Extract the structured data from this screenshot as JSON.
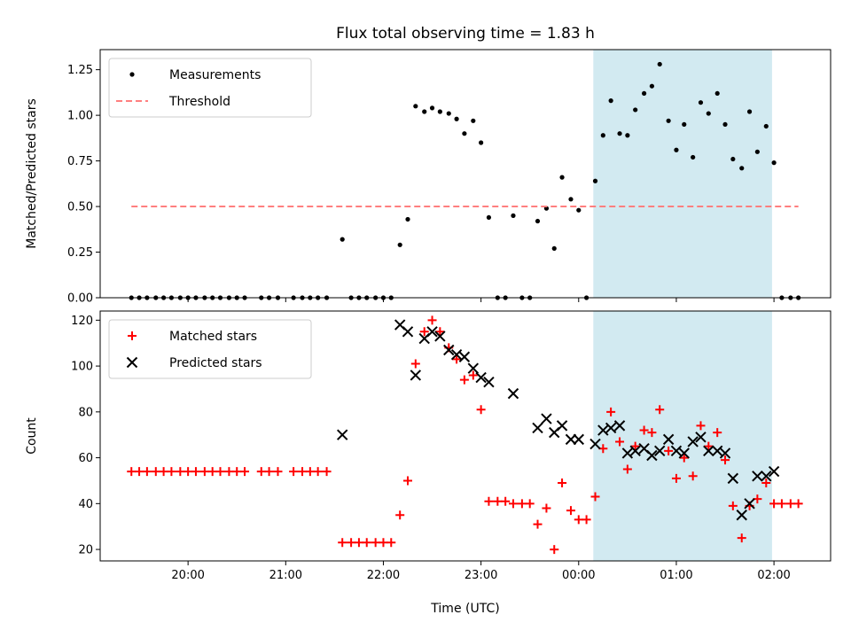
{
  "chart_data": {
    "title": "Flux total observing time = 1.83 h",
    "xlabel": "Time (UTC)",
    "x_unit": "hours UTC (values past 24 are after midnight)",
    "xlim": [
      19.1,
      26.58
    ],
    "x_ticks": [
      {
        "value": 20,
        "label": "20:00"
      },
      {
        "value": 21,
        "label": "21:00"
      },
      {
        "value": 22,
        "label": "22:00"
      },
      {
        "value": 23,
        "label": "23:00"
      },
      {
        "value": 24,
        "label": "00:00"
      },
      {
        "value": 25,
        "label": "01:00"
      },
      {
        "value": 26,
        "label": "02:00"
      }
    ],
    "highlight_span": {
      "x0": 24.15,
      "x1": 25.98,
      "color": "#add8e6"
    },
    "panels": [
      {
        "type": "scatter",
        "ylabel": "Matched/Predicted stars",
        "ylim": [
          0,
          1.36
        ],
        "y_ticks": [
          {
            "value": 0,
            "label": "0.00"
          },
          {
            "value": 0.25,
            "label": "0.25"
          },
          {
            "value": 0.5,
            "label": "0.50"
          },
          {
            "value": 0.75,
            "label": "0.75"
          },
          {
            "value": 1.0,
            "label": "1.00"
          },
          {
            "value": 1.25,
            "label": "1.25"
          }
        ],
        "legend_position": "upper-left",
        "series": [
          {
            "name": "Measurements",
            "marker": "dot",
            "color": "#000000",
            "points": [
              [
                19.42,
                0
              ],
              [
                19.5,
                0
              ],
              [
                19.58,
                0
              ],
              [
                19.67,
                0
              ],
              [
                19.75,
                0
              ],
              [
                19.83,
                0
              ],
              [
                19.92,
                0
              ],
              [
                20.0,
                0
              ],
              [
                20.08,
                0
              ],
              [
                20.17,
                0
              ],
              [
                20.25,
                0
              ],
              [
                20.33,
                0
              ],
              [
                20.42,
                0
              ],
              [
                20.5,
                0
              ],
              [
                20.58,
                0
              ],
              [
                20.75,
                0
              ],
              [
                20.83,
                0
              ],
              [
                20.92,
                0
              ],
              [
                21.08,
                0
              ],
              [
                21.17,
                0
              ],
              [
                21.25,
                0
              ],
              [
                21.33,
                0
              ],
              [
                21.42,
                0
              ],
              [
                21.58,
                0.32
              ],
              [
                21.67,
                0
              ],
              [
                21.75,
                0
              ],
              [
                21.83,
                0
              ],
              [
                21.92,
                0
              ],
              [
                22.0,
                0
              ],
              [
                22.08,
                0
              ],
              [
                22.17,
                0.29
              ],
              [
                22.25,
                0.43
              ],
              [
                22.33,
                1.05
              ],
              [
                22.42,
                1.02
              ],
              [
                22.5,
                1.04
              ],
              [
                22.58,
                1.02
              ],
              [
                22.67,
                1.01
              ],
              [
                22.75,
                0.98
              ],
              [
                22.83,
                0.9
              ],
              [
                22.92,
                0.97
              ],
              [
                23.0,
                0.85
              ],
              [
                23.08,
                0.44
              ],
              [
                23.17,
                0
              ],
              [
                23.25,
                0
              ],
              [
                23.33,
                0.45
              ],
              [
                23.42,
                0
              ],
              [
                23.5,
                0
              ],
              [
                23.58,
                0.42
              ],
              [
                23.67,
                0.49
              ],
              [
                23.75,
                0.27
              ],
              [
                23.83,
                0.66
              ],
              [
                23.92,
                0.54
              ],
              [
                24.0,
                0.48
              ],
              [
                24.08,
                0
              ],
              [
                24.17,
                0.64
              ],
              [
                24.25,
                0.89
              ],
              [
                24.33,
                1.08
              ],
              [
                24.42,
                0.9
              ],
              [
                24.5,
                0.89
              ],
              [
                24.58,
                1.03
              ],
              [
                24.67,
                1.12
              ],
              [
                24.75,
                1.16
              ],
              [
                24.83,
                1.28
              ],
              [
                24.92,
                0.97
              ],
              [
                25.0,
                0.81
              ],
              [
                25.08,
                0.95
              ],
              [
                25.17,
                0.77
              ],
              [
                25.25,
                1.07
              ],
              [
                25.33,
                1.01
              ],
              [
                25.42,
                1.12
              ],
              [
                25.5,
                0.95
              ],
              [
                25.58,
                0.76
              ],
              [
                25.67,
                0.71
              ],
              [
                25.75,
                1.02
              ],
              [
                25.83,
                0.8
              ],
              [
                25.92,
                0.94
              ],
              [
                26.0,
                0.74
              ],
              [
                26.08,
                0
              ],
              [
                26.17,
                0
              ],
              [
                26.25,
                0
              ]
            ]
          },
          {
            "name": "Threshold",
            "style": "dashed-line",
            "color": "#ff7f7f",
            "points": [
              [
                19.42,
                0.5
              ],
              [
                26.25,
                0.5
              ]
            ]
          }
        ]
      },
      {
        "type": "scatter",
        "ylabel": "Count",
        "ylim": [
          15,
          124
        ],
        "y_ticks": [
          {
            "value": 20,
            "label": "20"
          },
          {
            "value": 40,
            "label": "40"
          },
          {
            "value": 60,
            "label": "60"
          },
          {
            "value": 80,
            "label": "80"
          },
          {
            "value": 100,
            "label": "100"
          },
          {
            "value": 120,
            "label": "120"
          }
        ],
        "legend_position": "upper-left",
        "series": [
          {
            "name": "Matched stars",
            "marker": "plus",
            "color": "#ff0000",
            "points": [
              [
                19.42,
                54
              ],
              [
                19.5,
                54
              ],
              [
                19.58,
                54
              ],
              [
                19.67,
                54
              ],
              [
                19.75,
                54
              ],
              [
                19.83,
                54
              ],
              [
                19.92,
                54
              ],
              [
                20.0,
                54
              ],
              [
                20.08,
                54
              ],
              [
                20.17,
                54
              ],
              [
                20.25,
                54
              ],
              [
                20.33,
                54
              ],
              [
                20.42,
                54
              ],
              [
                20.5,
                54
              ],
              [
                20.58,
                54
              ],
              [
                20.75,
                54
              ],
              [
                20.83,
                54
              ],
              [
                20.92,
                54
              ],
              [
                21.08,
                54
              ],
              [
                21.17,
                54
              ],
              [
                21.25,
                54
              ],
              [
                21.33,
                54
              ],
              [
                21.42,
                54
              ],
              [
                21.58,
                23
              ],
              [
                21.67,
                23
              ],
              [
                21.75,
                23
              ],
              [
                21.83,
                23
              ],
              [
                21.92,
                23
              ],
              [
                22.0,
                23
              ],
              [
                22.08,
                23
              ],
              [
                22.17,
                35
              ],
              [
                22.25,
                50
              ],
              [
                22.33,
                101
              ],
              [
                22.42,
                115
              ],
              [
                22.5,
                120
              ],
              [
                22.58,
                115
              ],
              [
                22.67,
                108
              ],
              [
                22.75,
                103
              ],
              [
                22.83,
                94
              ],
              [
                22.92,
                96
              ],
              [
                23.0,
                81
              ],
              [
                23.08,
                41
              ],
              [
                23.17,
                41
              ],
              [
                23.25,
                41
              ],
              [
                23.33,
                40
              ],
              [
                23.42,
                40
              ],
              [
                23.5,
                40
              ],
              [
                23.58,
                31
              ],
              [
                23.67,
                38
              ],
              [
                23.75,
                20
              ],
              [
                23.83,
                49
              ],
              [
                23.92,
                37
              ],
              [
                24.0,
                33
              ],
              [
                24.08,
                33
              ],
              [
                24.17,
                43
              ],
              [
                24.25,
                64
              ],
              [
                24.33,
                80
              ],
              [
                24.42,
                67
              ],
              [
                24.5,
                55
              ],
              [
                24.58,
                65
              ],
              [
                24.67,
                72
              ],
              [
                24.75,
                71
              ],
              [
                24.83,
                81
              ],
              [
                24.92,
                63
              ],
              [
                25.0,
                51
              ],
              [
                25.08,
                60
              ],
              [
                25.17,
                52
              ],
              [
                25.25,
                74
              ],
              [
                25.33,
                65
              ],
              [
                25.42,
                71
              ],
              [
                25.5,
                59
              ],
              [
                25.58,
                39
              ],
              [
                25.67,
                25
              ],
              [
                25.75,
                39
              ],
              [
                25.83,
                42
              ],
              [
                25.92,
                49
              ],
              [
                26.0,
                40
              ],
              [
                26.08,
                40
              ],
              [
                26.17,
                40
              ],
              [
                26.25,
                40
              ]
            ]
          },
          {
            "name": "Predicted stars",
            "marker": "x",
            "color": "#000000",
            "points": [
              [
                21.58,
                70
              ],
              [
                22.17,
                118
              ],
              [
                22.25,
                115
              ],
              [
                22.33,
                96
              ],
              [
                22.42,
                112
              ],
              [
                22.5,
                115
              ],
              [
                22.58,
                113
              ],
              [
                22.67,
                107
              ],
              [
                22.75,
                105
              ],
              [
                22.83,
                104
              ],
              [
                22.92,
                99
              ],
              [
                23.0,
                95
              ],
              [
                23.08,
                93
              ],
              [
                23.33,
                88
              ],
              [
                23.58,
                73
              ],
              [
                23.67,
                77
              ],
              [
                23.75,
                71
              ],
              [
                23.83,
                74
              ],
              [
                23.92,
                68
              ],
              [
                24.0,
                68
              ],
              [
                24.17,
                66
              ],
              [
                24.25,
                72
              ],
              [
                24.33,
                73
              ],
              [
                24.42,
                74
              ],
              [
                24.5,
                62
              ],
              [
                24.58,
                63
              ],
              [
                24.67,
                64
              ],
              [
                24.75,
                61
              ],
              [
                24.83,
                63
              ],
              [
                24.92,
                68
              ],
              [
                25.0,
                63
              ],
              [
                25.08,
                62
              ],
              [
                25.17,
                67
              ],
              [
                25.25,
                69
              ],
              [
                25.33,
                63
              ],
              [
                25.42,
                63
              ],
              [
                25.5,
                62
              ],
              [
                25.58,
                51
              ],
              [
                25.67,
                35
              ],
              [
                25.75,
                40
              ],
              [
                25.83,
                52
              ],
              [
                25.92,
                52
              ],
              [
                26.0,
                54
              ]
            ]
          }
        ]
      }
    ]
  }
}
